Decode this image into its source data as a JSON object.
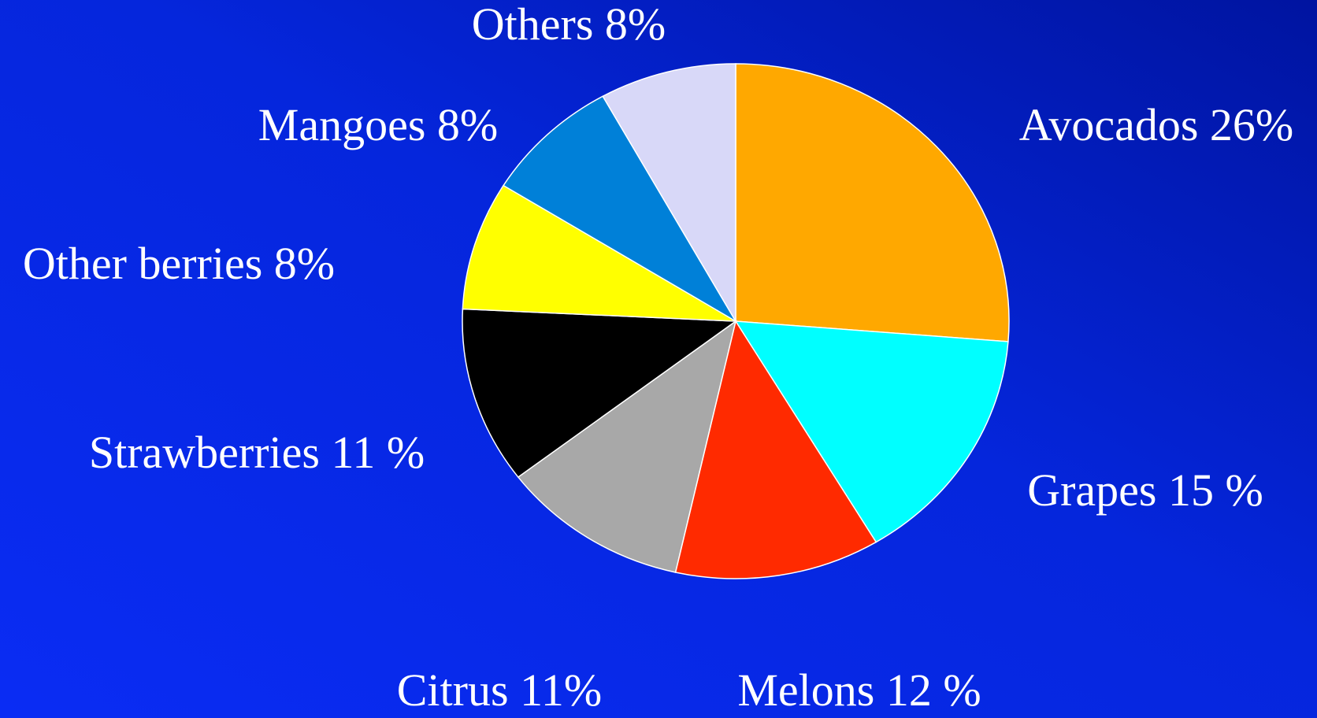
{
  "chart_data": {
    "type": "pie",
    "categories": [
      "Avocados",
      "Grapes",
      "Melons",
      "Citrus",
      "Strawberries",
      "Other berries",
      "Mangoes",
      "Others"
    ],
    "values": [
      26,
      15,
      12,
      11,
      11,
      8,
      8,
      8
    ],
    "value_labels": [
      "26%",
      "15 %",
      "12 %",
      "11%",
      "11 %",
      "8%",
      "8%",
      "8%"
    ],
    "colors": [
      "#ffa800",
      "#00ffff",
      "#ff2a00",
      "#a8a8a8",
      "#000000",
      "#ffff00",
      "#0080d8",
      "#d8d8f8"
    ]
  }
}
